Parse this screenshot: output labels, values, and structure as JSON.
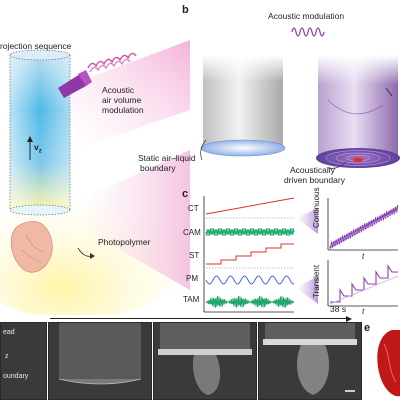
{
  "panel_a": {
    "projection_label": "rojection sequence",
    "acoustic_label_1": "Acoustic",
    "acoustic_label_2": "air volume",
    "acoustic_label_3": "modulation",
    "velocity_label": "v",
    "velocity_sub": "z",
    "photopolymer_label": "Photopolymer"
  },
  "panel_b": {
    "letter": "b",
    "modulation_label": "Acoustic modulation",
    "static_label_1": "Static air–liquid",
    "static_label_2": "boundary",
    "driven_label_1": "Acoustically",
    "driven_label_2": "driven boundary"
  },
  "panel_c": {
    "letter": "c",
    "rows": [
      "CT",
      "CAM",
      "ST",
      "PM",
      "TAM"
    ],
    "continuous_label": "Continuous",
    "transient_label": "Transient",
    "t_label": "t"
  },
  "panel_bottom": {
    "time_label": "38 s",
    "label_ead": "ead",
    "label_z": "z",
    "label_boundary": "oundary"
  },
  "panel_e": {
    "letter": "e"
  },
  "colors": {
    "purple": "#8a3fb0",
    "magenta": "#c2409a",
    "red": "#e0302a",
    "green": "#1aa86a",
    "blue": "#3a5ec7",
    "cyan": "#3fb7e6"
  }
}
